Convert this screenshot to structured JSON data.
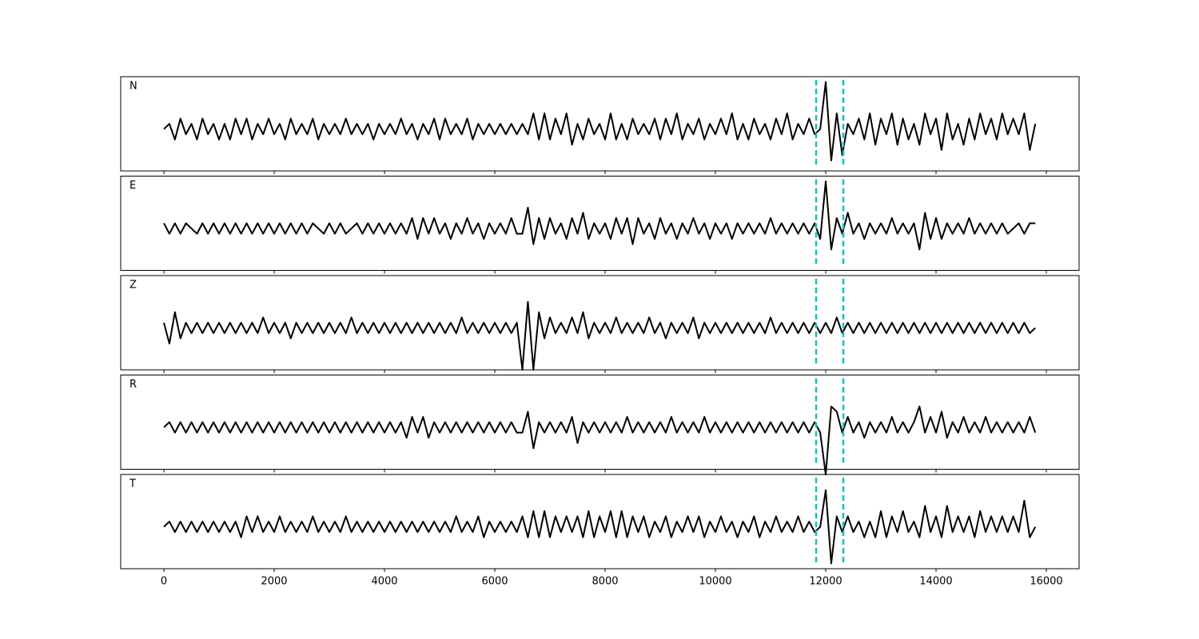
{
  "chart_data": {
    "type": "line",
    "subplots": true,
    "grid": false,
    "x": [
      0,
      100,
      200,
      300,
      400,
      500,
      600,
      700,
      800,
      900,
      1000,
      1100,
      1200,
      1300,
      1400,
      1500,
      1600,
      1700,
      1800,
      1900,
      2000,
      2100,
      2200,
      2300,
      2400,
      2500,
      2600,
      2700,
      2800,
      2900,
      3000,
      3100,
      3200,
      3300,
      3400,
      3500,
      3600,
      3700,
      3800,
      3900,
      4000,
      4100,
      4200,
      4300,
      4400,
      4500,
      4600,
      4700,
      4800,
      4900,
      5000,
      5100,
      5200,
      5300,
      5400,
      5500,
      5600,
      5700,
      5800,
      5900,
      6000,
      6100,
      6200,
      6300,
      6400,
      6500,
      6600,
      6700,
      6800,
      6900,
      7000,
      7100,
      7200,
      7300,
      7400,
      7500,
      7600,
      7700,
      7800,
      7900,
      8000,
      8100,
      8200,
      8300,
      8400,
      8500,
      8600,
      8700,
      8800,
      8900,
      9000,
      9100,
      9200,
      9300,
      9400,
      9500,
      9600,
      9700,
      9800,
      9900,
      10000,
      10100,
      10200,
      10300,
      10400,
      10500,
      10600,
      10700,
      10800,
      10900,
      11000,
      11100,
      11200,
      11300,
      11400,
      11500,
      11600,
      11700,
      11800,
      11900,
      12000,
      12100,
      12200,
      12300,
      12400,
      12500,
      12600,
      12700,
      12800,
      12900,
      13000,
      13100,
      13200,
      13300,
      13400,
      13500,
      13600,
      13700,
      13800,
      13900,
      14000,
      14100,
      14200,
      14300,
      14400,
      14500,
      14600,
      14700,
      14800,
      14900,
      15000,
      15100,
      15200,
      15300,
      15400,
      15500,
      15600,
      15700,
      15800
    ],
    "xlim": [
      -783,
      16594
    ],
    "xticks": [
      0,
      2000,
      4000,
      6000,
      8000,
      10000,
      12000,
      14000,
      16000
    ],
    "ylim": [
      -8,
      10
    ],
    "vlines": [
      11826,
      12319
    ],
    "vline_color": "#17c0bd",
    "series": [
      {
        "name": "N",
        "color": "#000000",
        "values": [
          0,
          1,
          -2,
          2,
          -1,
          1,
          -2,
          2,
          -1,
          1,
          -2,
          1,
          -2,
          2,
          -1,
          2,
          -2,
          1,
          -1,
          2,
          -1,
          1,
          -2,
          2,
          -1,
          1,
          -1,
          2,
          -2,
          1,
          -1,
          1,
          -1,
          2,
          -1,
          1,
          -1,
          1,
          -2,
          1,
          -1,
          1,
          -1,
          2,
          -1,
          1,
          -2,
          1,
          -1,
          2,
          -2,
          2,
          -1,
          1,
          -1,
          2,
          -2,
          1,
          -1,
          1,
          -1,
          1,
          -1,
          1,
          -1,
          1,
          -1,
          3,
          -2,
          3,
          -2,
          2,
          -1,
          3,
          -3,
          1,
          -2,
          2,
          -1,
          1,
          -2,
          3,
          -2,
          1,
          -2,
          2,
          -1,
          1,
          -1,
          2,
          -2,
          2,
          -1,
          3,
          -2,
          1,
          -1,
          2,
          -2,
          1,
          -1,
          2,
          -1,
          3,
          -2,
          1,
          -2,
          2,
          -1,
          1,
          -2,
          2,
          -1,
          3,
          -2,
          1,
          -1,
          2,
          -1,
          0,
          9,
          -6,
          3,
          -5,
          1,
          -1,
          2,
          -2,
          3,
          -3,
          2,
          -1,
          3,
          -3,
          2,
          -2,
          1,
          -3,
          3,
          -1,
          2,
          -4,
          3,
          -2,
          1,
          -3,
          2,
          -2,
          3,
          -1,
          2,
          -2,
          3,
          -1,
          2,
          -1,
          3,
          -4,
          1
        ]
      },
      {
        "name": "E",
        "color": "#000000",
        "values": [
          1,
          -1,
          1,
          -1,
          1,
          0,
          -1,
          1,
          -1,
          1,
          -1,
          1,
          -1,
          1,
          -1,
          1,
          -1,
          1,
          -1,
          1,
          -1,
          1,
          -1,
          1,
          -1,
          1,
          -1,
          1,
          0,
          -1,
          1,
          -1,
          1,
          -1,
          0,
          1,
          -1,
          1,
          -1,
          1,
          -1,
          1,
          -1,
          1,
          -1,
          2,
          -2,
          2,
          -1,
          2,
          -1,
          1,
          -2,
          1,
          -1,
          2,
          -1,
          1,
          -2,
          1,
          -1,
          1,
          -1,
          2,
          -1,
          -1,
          4,
          -3,
          2,
          -2,
          2,
          -1,
          1,
          -2,
          2,
          -1,
          3,
          -2,
          1,
          -1,
          1,
          -2,
          2,
          -1,
          2,
          -3,
          2,
          -1,
          1,
          -2,
          2,
          -1,
          1,
          -2,
          1,
          -1,
          2,
          -1,
          1,
          -2,
          1,
          -1,
          1,
          -2,
          1,
          -1,
          1,
          -1,
          1,
          -1,
          2,
          -1,
          1,
          -1,
          1,
          -1,
          1,
          -1,
          1,
          -2,
          9,
          -4,
          2,
          -1,
          3,
          -1,
          1,
          -2,
          1,
          -1,
          1,
          -1,
          2,
          -1,
          1,
          -1,
          1,
          -4,
          3,
          -2,
          2,
          -2,
          1,
          -1,
          1,
          -1,
          2,
          -1,
          1,
          -1,
          1,
          -1,
          1,
          -1,
          0,
          1,
          -1,
          1,
          1
        ]
      },
      {
        "name": "Z",
        "color": "#000000",
        "values": [
          1,
          -3,
          3,
          -2,
          1,
          -1,
          1,
          -1,
          1,
          -1,
          1,
          -1,
          1,
          -1,
          1,
          -1,
          1,
          -1,
          2,
          -1,
          1,
          -1,
          1,
          -2,
          1,
          -1,
          1,
          -1,
          1,
          -1,
          1,
          -1,
          1,
          -1,
          2,
          -1,
          1,
          -1,
          1,
          -1,
          1,
          -1,
          1,
          -1,
          1,
          -1,
          1,
          -1,
          1,
          -1,
          1,
          -1,
          1,
          -1,
          2,
          -1,
          1,
          -1,
          1,
          -1,
          1,
          -1,
          1,
          -1,
          1,
          -8,
          5,
          -8,
          3,
          -2,
          2,
          -1,
          1,
          -1,
          2,
          -1,
          3,
          -2,
          1,
          -1,
          1,
          -1,
          2,
          -1,
          1,
          -1,
          1,
          -1,
          2,
          -1,
          1,
          -2,
          1,
          -1,
          1,
          -1,
          2,
          -2,
          1,
          -1,
          1,
          -1,
          1,
          -1,
          1,
          -1,
          1,
          -1,
          1,
          -1,
          2,
          -1,
          1,
          -1,
          1,
          -1,
          1,
          -1,
          1,
          -1,
          1,
          -1,
          2,
          -1,
          1,
          -1,
          1,
          -1,
          1,
          -1,
          1,
          -1,
          1,
          -1,
          1,
          -1,
          1,
          -1,
          1,
          -1,
          1,
          -1,
          1,
          -1,
          1,
          -1,
          1,
          -1,
          1,
          -1,
          1,
          -1,
          1,
          -1,
          1,
          -1,
          1,
          -1,
          0
        ]
      },
      {
        "name": "R",
        "color": "#000000",
        "values": [
          0,
          1,
          -1,
          1,
          -1,
          1,
          -1,
          1,
          -1,
          1,
          -1,
          1,
          -1,
          1,
          -1,
          1,
          -1,
          1,
          -1,
          1,
          -1,
          1,
          -1,
          1,
          -1,
          1,
          -1,
          1,
          -1,
          1,
          -1,
          1,
          -1,
          1,
          -1,
          1,
          -1,
          1,
          -1,
          1,
          -1,
          1,
          -1,
          1,
          -2,
          2,
          -1,
          2,
          -2,
          1,
          -1,
          1,
          -1,
          1,
          -1,
          1,
          -1,
          1,
          -1,
          1,
          -1,
          1,
          -1,
          1,
          -1,
          -1,
          3,
          -4,
          1,
          -1,
          1,
          -1,
          1,
          -1,
          2,
          -3,
          1,
          -1,
          1,
          -1,
          1,
          -1,
          1,
          -1,
          2,
          -1,
          1,
          -1,
          1,
          -1,
          1,
          -1,
          2,
          -1,
          1,
          -1,
          1,
          -1,
          2,
          -1,
          1,
          -1,
          1,
          -1,
          1,
          -1,
          1,
          -1,
          1,
          -1,
          1,
          -1,
          1,
          -1,
          1,
          -1,
          1,
          -1,
          1,
          -1,
          -9,
          4,
          3,
          -1,
          2,
          -1,
          1,
          -2,
          1,
          -1,
          1,
          -1,
          2,
          -1,
          1,
          -1,
          1,
          4,
          -1,
          2,
          -1,
          3,
          -2,
          1,
          -1,
          2,
          -1,
          1,
          -1,
          2,
          -1,
          1,
          -1,
          1,
          -1,
          1,
          -1,
          2,
          -1
        ]
      },
      {
        "name": "T",
        "color": "#000000",
        "values": [
          0,
          1,
          -1,
          1,
          -1,
          1,
          -1,
          1,
          -1,
          1,
          -1,
          1,
          -1,
          1,
          -2,
          2,
          -1,
          2,
          -1,
          1,
          -1,
          2,
          -1,
          1,
          -1,
          1,
          -1,
          2,
          -1,
          1,
          -1,
          1,
          -1,
          2,
          -1,
          1,
          -1,
          1,
          -1,
          1,
          -1,
          1,
          -1,
          1,
          -1,
          1,
          -1,
          1,
          -1,
          1,
          -1,
          1,
          -1,
          2,
          -1,
          1,
          -1,
          2,
          -2,
          1,
          -1,
          1,
          -1,
          1,
          -1,
          2,
          -2,
          3,
          -2,
          3,
          -2,
          2,
          -1,
          2,
          -1,
          2,
          -2,
          3,
          -2,
          2,
          -1,
          3,
          -2,
          3,
          -2,
          2,
          -1,
          2,
          -2,
          1,
          -1,
          2,
          -2,
          1,
          -1,
          2,
          -1,
          2,
          -2,
          1,
          -1,
          2,
          -1,
          1,
          -2,
          1,
          -1,
          2,
          -2,
          1,
          -1,
          2,
          -1,
          1,
          -1,
          2,
          -1,
          1,
          -1,
          0,
          7,
          -7,
          2,
          -1,
          2,
          -1,
          1,
          -2,
          1,
          -2,
          3,
          -2,
          2,
          -1,
          3,
          -1,
          1,
          -2,
          4,
          -1,
          2,
          -2,
          4,
          -1,
          2,
          -1,
          2,
          -2,
          3,
          -1,
          2,
          -1,
          2,
          -1,
          2,
          -1,
          5,
          -2,
          0
        ]
      }
    ]
  }
}
